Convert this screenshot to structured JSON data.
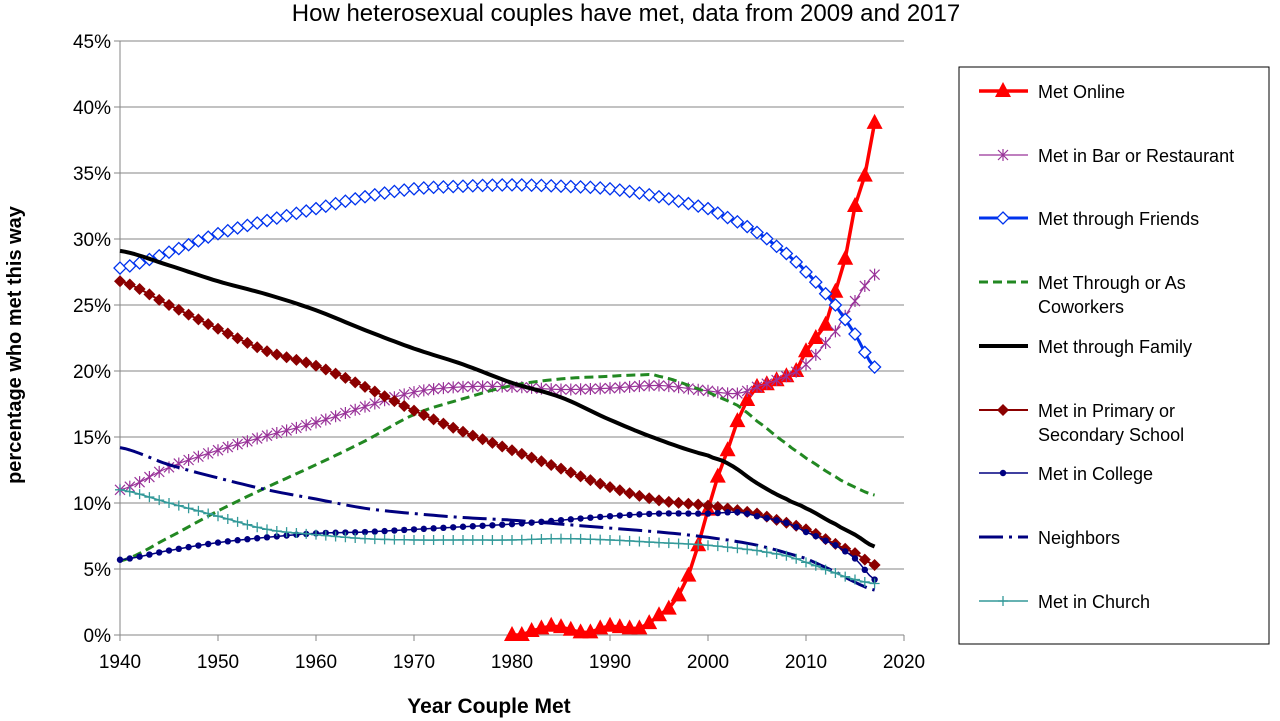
{
  "chart_data": {
    "type": "line",
    "title": "How heterosexual couples have met, data from 2009 and 2017",
    "xlabel": "Year Couple Met",
    "ylabel": "percentage who met this way",
    "xlim": [
      1940,
      2020
    ],
    "ylim": [
      0,
      45
    ],
    "x_ticks": [
      "1940",
      "1950",
      "1960",
      "1970",
      "1980",
      "1990",
      "2000",
      "2010",
      "2020"
    ],
    "x_tick_values": [
      1940,
      1950,
      1960,
      1970,
      1980,
      1990,
      2000,
      2010,
      2020
    ],
    "y_ticks": [
      "0%",
      "5%",
      "10%",
      "15%",
      "20%",
      "25%",
      "30%",
      "35%",
      "40%",
      "45%"
    ],
    "y_tick_values": [
      0,
      5,
      10,
      15,
      20,
      25,
      30,
      35,
      40,
      45
    ],
    "grid": "horizontal",
    "legend": "right",
    "series": [
      {
        "name": "Met Online",
        "color": "#ff0000",
        "marker": "triangle",
        "width": 3.5,
        "dash": "",
        "x": [
          1980,
          1981,
          1982,
          1983,
          1984,
          1985,
          1986,
          1987,
          1988,
          1989,
          1990,
          1991,
          1992,
          1993,
          1994,
          1995,
          1996,
          1997,
          1998,
          1999,
          2000,
          2001,
          2002,
          2003,
          2004,
          2005,
          2006,
          2007,
          2008,
          2009,
          2010,
          2011,
          2012,
          2013,
          2014,
          2015,
          2016,
          2017
        ],
        "y": [
          0.0,
          0.0,
          0.3,
          0.5,
          0.7,
          0.6,
          0.4,
          0.2,
          0.2,
          0.5,
          0.7,
          0.6,
          0.5,
          0.5,
          0.9,
          1.5,
          2.0,
          3.0,
          4.5,
          6.8,
          9.5,
          12.0,
          14.0,
          16.2,
          17.8,
          18.8,
          19.0,
          19.3,
          19.6,
          20.0,
          21.5,
          22.5,
          23.5,
          26.0,
          28.5,
          32.5,
          34.8,
          38.8
        ]
      },
      {
        "name": "Met in Bar or Restaurant",
        "color": "#993399",
        "marker": "star",
        "width": 1.2,
        "dash": "",
        "x": [
          1940,
          1945,
          1950,
          1955,
          1960,
          1965,
          1970,
          1975,
          1980,
          1985,
          1990,
          1995,
          2000,
          2003,
          2005,
          2008,
          2010,
          2013,
          2015,
          2017
        ],
        "y": [
          11.0,
          12.7,
          14.0,
          15.1,
          16.1,
          17.3,
          18.4,
          18.8,
          18.8,
          18.6,
          18.7,
          18.9,
          18.5,
          18.3,
          18.8,
          19.6,
          20.5,
          23.0,
          25.3,
          27.3
        ]
      },
      {
        "name": "Met through Friends",
        "color": "#0033ee",
        "marker": "diamond-open",
        "width": 3,
        "dash": "",
        "x": [
          1940,
          1945,
          1950,
          1955,
          1960,
          1965,
          1970,
          1975,
          1980,
          1985,
          1990,
          1995,
          2000,
          2003,
          2005,
          2008,
          2010,
          2013,
          2015,
          2017
        ],
        "y": [
          27.8,
          29.0,
          30.4,
          31.4,
          32.3,
          33.2,
          33.8,
          34.0,
          34.1,
          34.0,
          33.8,
          33.2,
          32.3,
          31.3,
          30.5,
          28.9,
          27.5,
          25.0,
          22.8,
          20.3
        ]
      },
      {
        "name": "Met Through or As Coworkers",
        "color": "#228822",
        "marker": "",
        "width": 3,
        "dash": "9,5",
        "x": [
          1940,
          1945,
          1950,
          1955,
          1960,
          1965,
          1970,
          1975,
          1980,
          1985,
          1990,
          1993,
          1995,
          2000,
          2003,
          2005,
          2008,
          2010,
          2013,
          2015,
          2017
        ],
        "y": [
          5.6,
          7.4,
          9.4,
          11.2,
          12.9,
          14.7,
          16.7,
          17.9,
          18.9,
          19.4,
          19.6,
          19.7,
          19.6,
          18.4,
          17.4,
          16.2,
          14.5,
          13.4,
          12.0,
          11.2,
          10.6
        ]
      },
      {
        "name": "Met through Family",
        "color": "#000000",
        "marker": "",
        "width": 4,
        "dash": "",
        "x": [
          1940,
          1945,
          1950,
          1955,
          1960,
          1965,
          1970,
          1975,
          1980,
          1985,
          1990,
          1995,
          2000,
          2002,
          2005,
          2008,
          2010,
          2013,
          2015,
          2017
        ],
        "y": [
          29.1,
          28.0,
          26.8,
          25.8,
          24.6,
          23.1,
          21.7,
          20.5,
          19.1,
          18.0,
          16.3,
          14.8,
          13.6,
          13.0,
          11.5,
          10.3,
          9.6,
          8.4,
          7.6,
          6.7
        ]
      },
      {
        "name": "Met in Primary or Secondary School",
        "color": "#8b0000",
        "marker": "diamond-filled",
        "width": 2,
        "dash": "",
        "x": [
          1940,
          1945,
          1950,
          1955,
          1960,
          1965,
          1970,
          1975,
          1980,
          1985,
          1990,
          1995,
          2000,
          2005,
          2008,
          2010,
          2013,
          2015,
          2017
        ],
        "y": [
          26.8,
          25.0,
          23.2,
          21.5,
          20.4,
          18.8,
          17.0,
          15.4,
          14.0,
          12.6,
          11.2,
          10.2,
          9.8,
          9.2,
          8.5,
          8.0,
          6.9,
          6.2,
          5.3
        ]
      },
      {
        "name": "Met in College",
        "color": "#000080",
        "marker": "dot",
        "width": 1.5,
        "dash": "",
        "x": [
          1940,
          1945,
          1950,
          1955,
          1960,
          1965,
          1970,
          1975,
          1980,
          1985,
          1990,
          1995,
          2000,
          2003,
          2005,
          2008,
          2010,
          2013,
          2015,
          2017
        ],
        "y": [
          5.7,
          6.4,
          7.0,
          7.4,
          7.7,
          7.8,
          8.0,
          8.2,
          8.4,
          8.7,
          9.0,
          9.2,
          9.2,
          9.3,
          9.0,
          8.5,
          7.8,
          6.8,
          5.8,
          4.2
        ]
      },
      {
        "name": "Neighbors",
        "color": "#00007f",
        "marker": "",
        "width": 3,
        "dash": "24,6,3,6",
        "x": [
          1940,
          1945,
          1950,
          1955,
          1960,
          1965,
          1970,
          1975,
          1980,
          1985,
          1990,
          1995,
          2000,
          2005,
          2010,
          2013,
          2015,
          2017
        ],
        "y": [
          14.2,
          12.9,
          11.9,
          11.0,
          10.3,
          9.6,
          9.2,
          8.9,
          8.7,
          8.4,
          8.1,
          7.8,
          7.4,
          6.8,
          5.8,
          4.8,
          4.0,
          3.4
        ]
      },
      {
        "name": "Met in Church",
        "color": "#339999",
        "marker": "plus",
        "width": 1.5,
        "dash": "",
        "x": [
          1940,
          1945,
          1950,
          1955,
          1960,
          1965,
          1970,
          1975,
          1980,
          1985,
          1990,
          1995,
          2000,
          2005,
          2008,
          2010,
          2013,
          2015,
          2017
        ],
        "y": [
          11.0,
          10.0,
          9.0,
          8.0,
          7.6,
          7.3,
          7.2,
          7.2,
          7.2,
          7.3,
          7.2,
          7.0,
          6.8,
          6.4,
          6.0,
          5.5,
          4.7,
          4.2,
          3.9
        ]
      }
    ]
  }
}
